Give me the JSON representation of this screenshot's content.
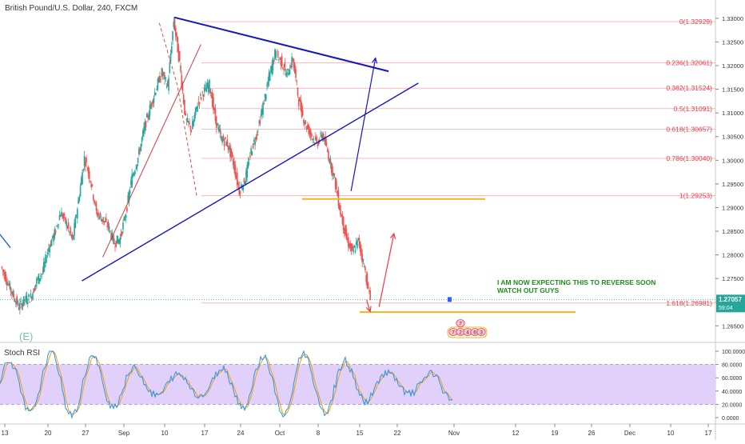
{
  "header": {
    "title": "British Pound/U.S. Dollar, 240, FXCM"
  },
  "colors": {
    "up": "#26a69a",
    "down": "#ef5350",
    "trendline": "#1515c0",
    "fib": "#f23645",
    "support": "#f5b31a",
    "stoch_fill": "#e1d0fa",
    "k_line": "#2196f3",
    "d_line": "#ff9800",
    "price_badge": "#26a69a",
    "annotation_text": "#1e8c1e"
  },
  "chart_data": {
    "type": "candlestick",
    "symbol": "British Pound/U.S. Dollar",
    "timeframe": "240",
    "source": "FXCM",
    "y_axis": {
      "range": [
        1.2615,
        1.3315
      ],
      "ticks": [
        "1.33000",
        "1.32500",
        "1.32000",
        "1.31500",
        "1.31000",
        "1.30500",
        "1.30000",
        "1.29500",
        "1.29000",
        "1.28500",
        "1.28000",
        "1.27500",
        "1.27000",
        "1.26500"
      ],
      "tick_values": [
        1.33,
        1.325,
        1.32,
        1.315,
        1.31,
        1.305,
        1.3,
        1.295,
        1.29,
        1.285,
        1.28,
        1.275,
        1.27,
        1.265
      ]
    },
    "x_axis": {
      "ticks": [
        "13",
        "20",
        "27",
        "Sep",
        "10",
        "17",
        "24",
        "Oct",
        "8",
        "15",
        "22",
        "Nov",
        "12",
        "19",
        "26",
        "Dec",
        "10",
        "17"
      ]
    },
    "price_path": [
      [
        13,
        1.2775
      ],
      [
        14,
        1.2745
      ],
      [
        15,
        1.2715
      ],
      [
        16,
        1.269
      ],
      [
        17,
        1.2705
      ],
      [
        18,
        1.271
      ],
      [
        19,
        1.2745
      ],
      [
        20,
        1.2765
      ],
      [
        21,
        1.2815
      ],
      [
        22,
        1.2845
      ],
      [
        23,
        1.289
      ],
      [
        24,
        1.2865
      ],
      [
        25,
        1.283
      ],
      [
        26,
        1.2915
      ],
      [
        27,
        1.3005
      ],
      [
        28,
        1.296
      ],
      [
        29,
        1.289
      ],
      [
        30,
        1.2875
      ],
      [
        31,
        1.286
      ],
      [
        32,
        1.2825
      ],
      [
        33,
        1.2835
      ],
      [
        34,
        1.289
      ],
      [
        35,
        1.2965
      ],
      [
        36,
        1.3005
      ],
      [
        37,
        1.3065
      ],
      [
        38,
        1.311
      ],
      [
        39,
        1.315
      ],
      [
        40,
        1.3185
      ],
      [
        41,
        1.3155
      ],
      [
        42,
        1.3295
      ],
      [
        43,
        1.3205
      ],
      [
        44,
        1.3085
      ],
      [
        45,
        1.3065
      ],
      [
        46,
        1.312
      ],
      [
        47,
        1.3145
      ],
      [
        48,
        1.316
      ],
      [
        49,
        1.3085
      ],
      [
        50,
        1.3045
      ],
      [
        51,
        1.3035
      ],
      [
        52,
        1.2995
      ],
      [
        53,
        1.2935
      ],
      [
        54,
        1.296
      ],
      [
        55,
        1.302
      ],
      [
        56,
        1.306
      ],
      [
        57,
        1.3115
      ],
      [
        58,
        1.3175
      ],
      [
        59,
        1.3225
      ],
      [
        60,
        1.321
      ],
      [
        61,
        1.318
      ],
      [
        62,
        1.3215
      ],
      [
        63,
        1.3125
      ],
      [
        64,
        1.308
      ],
      [
        65,
        1.3055
      ],
      [
        66,
        1.3035
      ],
      [
        67,
        1.3055
      ],
      [
        68,
        1.301
      ],
      [
        69,
        1.296
      ],
      [
        70,
        1.289
      ],
      [
        71,
        1.2835
      ],
      [
        72,
        1.2805
      ],
      [
        73,
        1.283
      ],
      [
        74,
        1.2775
      ],
      [
        75,
        1.2705
      ]
    ],
    "current_price": {
      "label": "1.27057",
      "timer": "59:04"
    },
    "fib_levels": [
      {
        "label": "0(1.32929)",
        "value": 1.32929
      },
      {
        "label": "0.236(1.32061)",
        "value": 1.32061
      },
      {
        "label": "0.382(1.31524)",
        "value": 1.31524
      },
      {
        "label": "0.5(1.31091)",
        "value": 1.31091
      },
      {
        "label": "0.618(1.30657)",
        "value": 1.30657
      },
      {
        "label": "0.786(1.30040)",
        "value": 1.3004
      },
      {
        "label": "1(1.29253)",
        "value": 1.29253
      },
      {
        "label": "1.618(1.26981)",
        "value": 1.26981
      }
    ],
    "support_levels": [
      1.2918,
      1.2679
    ],
    "trendlines": [
      {
        "id": "upper-triangle",
        "points": [
          [
            42,
            1.3302
          ],
          [
            78,
            1.3188
          ]
        ]
      },
      {
        "id": "lower-triangle",
        "points": [
          [
            26.5,
            1.2745
          ],
          [
            83,
            1.3163
          ]
        ]
      },
      {
        "id": "early-down",
        "points": [
          [
            12,
            1.2855
          ],
          [
            14.5,
            1.2815
          ]
        ]
      },
      {
        "id": "steep-up",
        "points": [
          [
            30,
            1.2795
          ],
          [
            46.5,
            1.3245
          ]
        ]
      }
    ],
    "dashed_channel": [
      [
        39.5,
        1.329
      ],
      [
        42.5,
        1.316
      ],
      [
        45.8,
        1.2924
      ]
    ],
    "arrows": [
      {
        "id": "blue-up",
        "from": [
          71.7,
          1.2935
        ],
        "to": [
          75.8,
          1.3216
        ],
        "color": "#1515c0"
      },
      {
        "id": "red-up",
        "from": [
          76.4,
          1.269
        ],
        "to": [
          78.9,
          1.2845
        ],
        "color": "#f23645"
      },
      {
        "id": "red-small",
        "from": [
          74.3,
          1.2705
        ],
        "to": [
          74.9,
          1.268
        ],
        "color": "#f23645"
      }
    ],
    "wave_label": "(E)",
    "wave_counts": [
      "7",
      "2",
      "4",
      "6",
      "3"
    ],
    "annotation": {
      "lines": [
        "I AM NOW EXPECTING THIS TO REVERSE SOON",
        "WATCH OUT GUYS"
      ]
    }
  },
  "stoch": {
    "title": "Stoch RSI",
    "ticks": [
      "100.0000",
      "80.0000",
      "60.0000",
      "40.0000",
      "20.0000",
      "0.0000"
    ],
    "tick_values": [
      100,
      80,
      60,
      40,
      20,
      0
    ],
    "band": [
      20,
      80
    ]
  }
}
